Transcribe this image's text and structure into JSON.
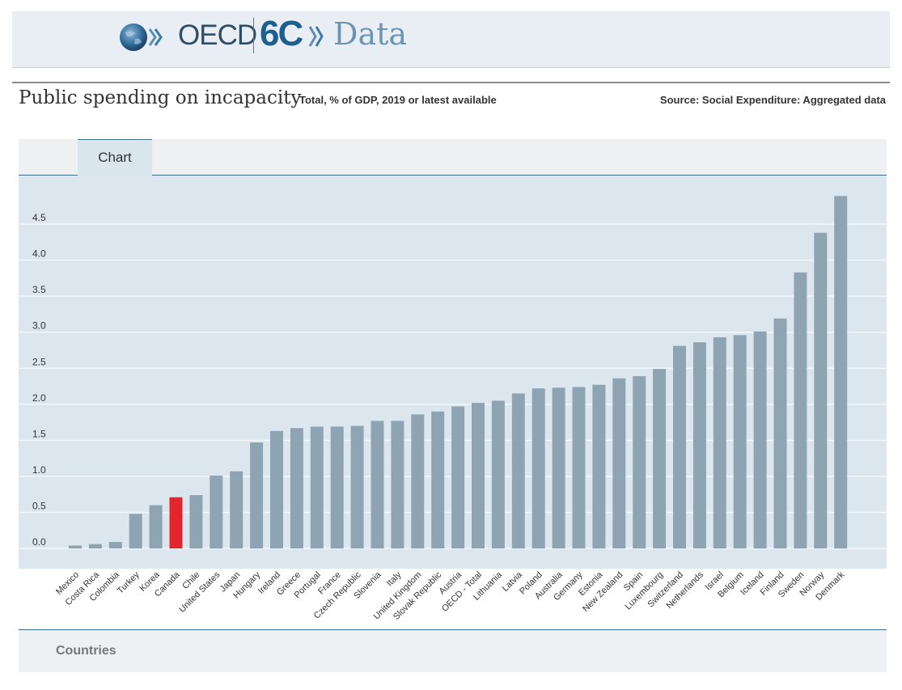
{
  "header": {
    "logo_text": "OECD",
    "logo_60": "6C",
    "logo_data": "Data"
  },
  "page": {
    "title": "Public spending on incapacity",
    "subtitle": "Total, % of GDP, 2019 or latest available",
    "source": "Source: Social Expenditure: Aggregated data"
  },
  "tabs": [
    {
      "label": "Chart"
    }
  ],
  "footer": {
    "label": "Countries"
  },
  "colors": {
    "bar": "#8fa4b3",
    "highlight": "#e3262d",
    "plot_bg": "#dbe6ee",
    "grid": "#f3f7fa"
  },
  "chart_data": {
    "type": "bar",
    "title": "Public spending on incapacity",
    "subtitle": "Total, % of GDP, 2019 or latest available",
    "xlabel": "Countries",
    "ylabel": "",
    "ylim": [
      0,
      5
    ],
    "yticks": [
      0.0,
      0.5,
      1.0,
      1.5,
      2.0,
      2.5,
      3.0,
      3.5,
      4.0,
      4.5
    ],
    "ytick_labels": [
      "0.0",
      "0.5",
      "1.0",
      "1.5",
      "2.0",
      "2.5",
      "3.0",
      "3.5",
      "4.0",
      "4.5"
    ],
    "grid": true,
    "highlight": "Canada",
    "categories": [
      "Mexico",
      "Costa Rica",
      "Colombia",
      "Turkey",
      "Korea",
      "Canada",
      "Chile",
      "United States",
      "Japan",
      "Hungary",
      "Ireland",
      "Greece",
      "Portugal",
      "France",
      "Czech Republic",
      "Slovenia",
      "Italy",
      "United Kingdom",
      "Slovak Republic",
      "Austria",
      "OECD - Total",
      "Lithuania",
      "Latvia",
      "Poland",
      "Australia",
      "Germany",
      "Estonia",
      "New Zealand",
      "Spain",
      "Luxembourg",
      "Switzerland",
      "Netherlands",
      "Israel",
      "Belgium",
      "Iceland",
      "Finland",
      "Sweden",
      "Norway",
      "Denmark"
    ],
    "values": [
      0.04,
      0.06,
      0.09,
      0.48,
      0.6,
      0.71,
      0.74,
      1.01,
      1.07,
      1.47,
      1.63,
      1.67,
      1.69,
      1.69,
      1.7,
      1.77,
      1.77,
      1.86,
      1.9,
      1.97,
      2.02,
      2.05,
      2.15,
      2.22,
      2.23,
      2.24,
      2.27,
      2.36,
      2.39,
      2.49,
      2.81,
      2.86,
      2.93,
      2.96,
      3.01,
      3.19,
      3.83,
      4.38,
      4.89
    ]
  }
}
